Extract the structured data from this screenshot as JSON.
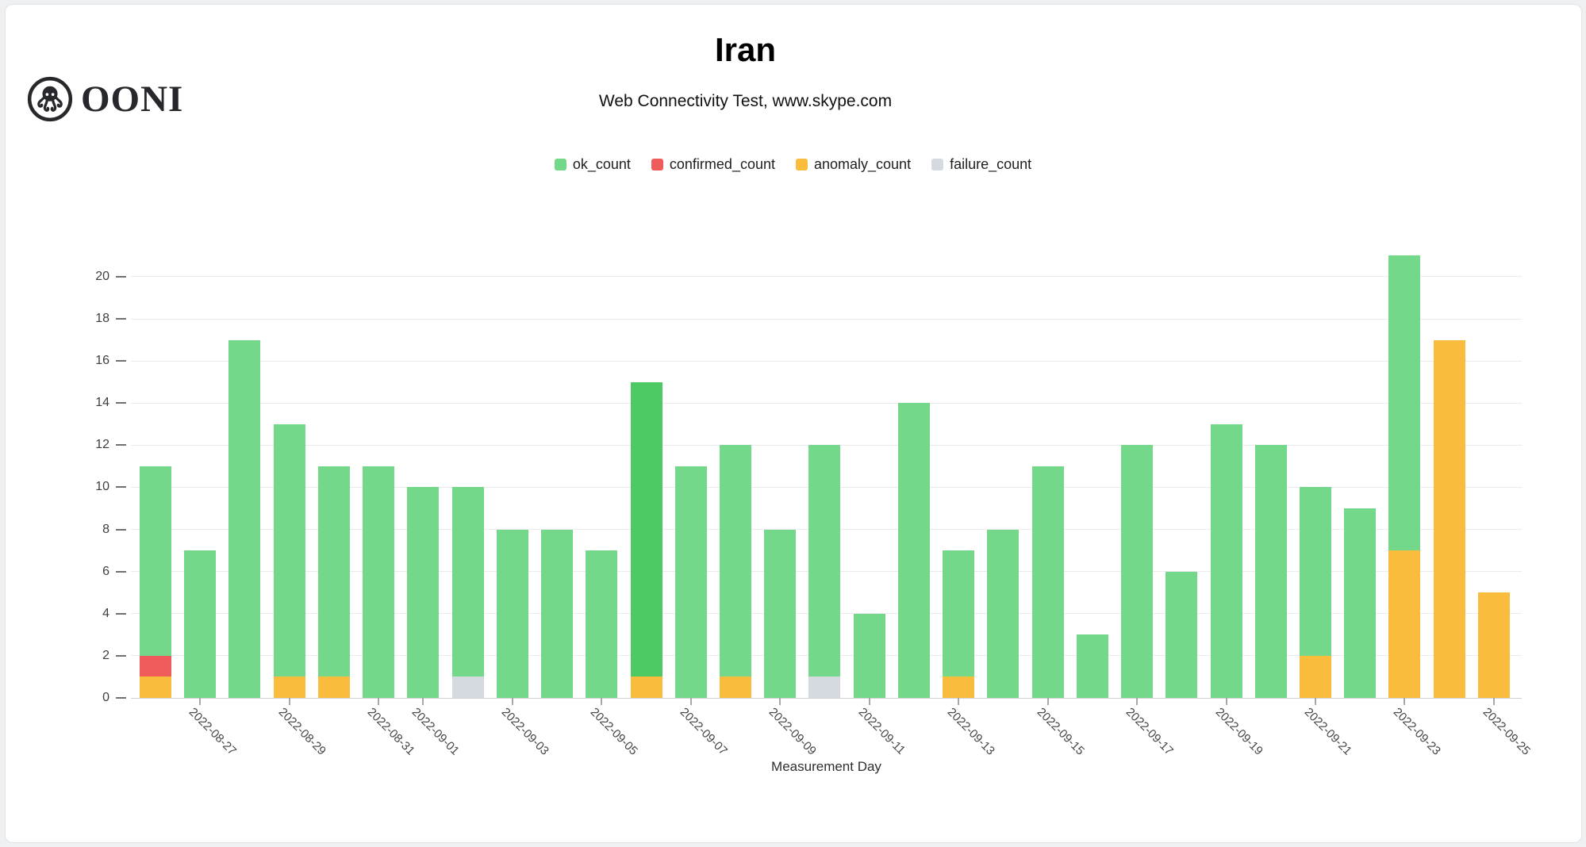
{
  "header": {
    "logo_text": "OONI",
    "title": "Iran",
    "subtitle": "Web Connectivity Test, www.skype.com"
  },
  "colors": {
    "card_background": "#ffffff",
    "card_border": "#e2e5e8",
    "page_background": "#eef0f2",
    "gridline": "#e9eaeb",
    "axis_line": "#cfd2d4",
    "logo_ink": "#26282b"
  },
  "chart_data": {
    "type": "bar",
    "stacked": true,
    "title": "Iran",
    "subtitle": "Web Connectivity Test, www.skype.com",
    "xlabel": "Measurement Day",
    "ylabel": "",
    "ylim": [
      0,
      20
    ],
    "grid": true,
    "legend_position": "top",
    "y_tick_labels": [
      "0",
      "2",
      "4",
      "6",
      "8",
      "10",
      "12",
      "14",
      "16",
      "18",
      "20"
    ],
    "categories": [
      "2022-08-26",
      "2022-08-27",
      "2022-08-28",
      "2022-08-29",
      "2022-08-30",
      "2022-08-31",
      "2022-09-01",
      "2022-09-02",
      "2022-09-03",
      "2022-09-04",
      "2022-09-05",
      "2022-09-06",
      "2022-09-07",
      "2022-09-08",
      "2022-09-09",
      "2022-09-10",
      "2022-09-11",
      "2022-09-12",
      "2022-09-13",
      "2022-09-14",
      "2022-09-15",
      "2022-09-16",
      "2022-09-17",
      "2022-09-18",
      "2022-09-19",
      "2022-09-20",
      "2022-09-21",
      "2022-09-22",
      "2022-09-23",
      "2022-09-24",
      "2022-09-25"
    ],
    "tick_categories": [
      "2022-08-27",
      "2022-08-29",
      "2022-08-31",
      "2022-09-01",
      "2022-09-03",
      "2022-09-05",
      "2022-09-07",
      "2022-09-09",
      "2022-09-11",
      "2022-09-13",
      "2022-09-15",
      "2022-09-17",
      "2022-09-19",
      "2022-09-21",
      "2022-09-23",
      "2022-09-25"
    ],
    "series": [
      {
        "name": "ok_count",
        "color": "#73d88a",
        "values": [
          9,
          7,
          17,
          12,
          10,
          11,
          10,
          9,
          8,
          8,
          7,
          14,
          11,
          11,
          8,
          11,
          4,
          14,
          6,
          8,
          11,
          3,
          12,
          6,
          13,
          12,
          8,
          9,
          14,
          0,
          0
        ]
      },
      {
        "name": "confirmed_count",
        "color": "#ef5b5b",
        "values": [
          1,
          0,
          0,
          0,
          0,
          0,
          0,
          0,
          0,
          0,
          0,
          0,
          0,
          0,
          0,
          0,
          0,
          0,
          0,
          0,
          0,
          0,
          0,
          0,
          0,
          0,
          0,
          0,
          0,
          0,
          0
        ]
      },
      {
        "name": "anomaly_count",
        "color": "#fabc3d",
        "values": [
          1,
          0,
          0,
          1,
          1,
          0,
          0,
          0,
          0,
          0,
          0,
          1,
          0,
          1,
          0,
          0,
          0,
          0,
          1,
          0,
          0,
          0,
          0,
          0,
          0,
          0,
          2,
          0,
          7,
          17,
          5
        ]
      },
      {
        "name": "failure_count",
        "color": "#d4dae0",
        "values": [
          0,
          0,
          0,
          0,
          0,
          0,
          0,
          1,
          0,
          0,
          0,
          0,
          0,
          0,
          0,
          1,
          0,
          0,
          0,
          0,
          0,
          0,
          0,
          0,
          0,
          0,
          0,
          0,
          0,
          0,
          0
        ]
      }
    ],
    "stack_order_bottom_to_top": [
      "anomaly_count",
      "confirmed_count",
      "failure_count",
      "ok_count"
    ],
    "highlighted_category": "2022-09-06",
    "highlight_ok_color": "#4dca63"
  }
}
